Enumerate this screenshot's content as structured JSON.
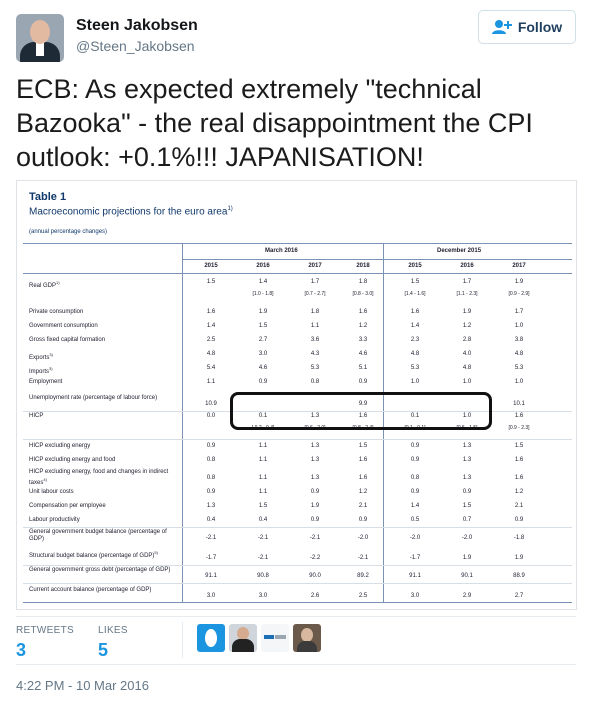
{
  "author": {
    "name": "Steen Jakobsen",
    "handle": "@Steen_Jakobsen"
  },
  "follow_label": "Follow",
  "tweet_text": "ECB: As expected extremely \"technical Bazooka\" - the real disappointment the CPI outlook: +0.1%!!! JAPANISATION!",
  "table": {
    "title": "Table 1",
    "subtitle": "Macroeconomic projections for the euro area",
    "subtitle_sup": "1)",
    "note": "(annual percentage changes)",
    "group_march": "March 2016",
    "group_december": "December 2015",
    "years": [
      "2015",
      "2016",
      "2017",
      "2018",
      "2015",
      "2016",
      "2017"
    ],
    "rows": [
      {
        "label": "Real GDP",
        "sup": "1)",
        "values": [
          "1.5",
          "1.4",
          "1.7",
          "1.8",
          "1.5",
          "1.7",
          "1.9"
        ],
        "ranges": [
          "",
          "[1.0 - 1.8]",
          "[0.7 - 2.7]",
          "[0.8 - 3.0]",
          "[1.4 - 1.6]",
          "[1.1 - 2.3]",
          "[0.9 - 2.9]"
        ]
      },
      {
        "label": "Private consumption",
        "values": [
          "1.6",
          "1.9",
          "1.8",
          "1.6",
          "1.6",
          "1.9",
          "1.7"
        ]
      },
      {
        "label": "Government consumption",
        "values": [
          "1.4",
          "1.5",
          "1.1",
          "1.2",
          "1.4",
          "1.2",
          "1.0"
        ]
      },
      {
        "label": "Gross fixed capital formation",
        "values": [
          "2.5",
          "2.7",
          "3.6",
          "3.3",
          "2.3",
          "2.8",
          "3.8"
        ]
      },
      {
        "label": "Exports",
        "sup": "3)",
        "values": [
          "4.8",
          "3.0",
          "4.3",
          "4.6",
          "4.8",
          "4.0",
          "4.8"
        ]
      },
      {
        "label": "Imports",
        "sup": "3)",
        "values": [
          "5.4",
          "4.6",
          "5.3",
          "5.1",
          "5.3",
          "4.8",
          "5.3"
        ]
      },
      {
        "label": "Employment",
        "values": [
          "1.1",
          "0.9",
          "0.8",
          "0.9",
          "1.0",
          "1.0",
          "1.0"
        ]
      },
      {
        "label": "Unemployment rate (percentage of labour force)",
        "values": [
          "10.9",
          "",
          "",
          "9.9",
          "",
          "",
          "10.1"
        ]
      },
      {
        "label": "HICP",
        "values": [
          "0.0",
          "0.1",
          "1.3",
          "1.6",
          "0.1",
          "1.0",
          "1.6"
        ],
        "ranges": [
          "",
          "[-0.2 - 0.4]",
          "[0.6 - 2.0]",
          "[0.8 - 2.4]",
          "[0.1 - 0.1]",
          "[0.5 - 1.5]",
          "[0.9 - 2.3]"
        ]
      },
      {
        "label": "HICP excluding energy",
        "values": [
          "0.9",
          "1.1",
          "1.3",
          "1.5",
          "0.9",
          "1.3",
          "1.5"
        ]
      },
      {
        "label": "HICP excluding energy and food",
        "values": [
          "0.8",
          "1.1",
          "1.3",
          "1.6",
          "0.9",
          "1.3",
          "1.6"
        ]
      },
      {
        "label": "HICP excluding energy, food and changes in indirect taxes",
        "sup": "4)",
        "values": [
          "0.8",
          "1.1",
          "1.3",
          "1.6",
          "0.8",
          "1.3",
          "1.6"
        ]
      },
      {
        "label": "Unit labour costs",
        "values": [
          "0.9",
          "1.1",
          "0.9",
          "1.2",
          "0.9",
          "0.9",
          "1.2"
        ]
      },
      {
        "label": "Compensation per employee",
        "values": [
          "1.3",
          "1.5",
          "1.9",
          "2.1",
          "1.4",
          "1.5",
          "2.1"
        ]
      },
      {
        "label": "Labour productivity",
        "values": [
          "0.4",
          "0.4",
          "0.9",
          "0.9",
          "0.5",
          "0.7",
          "0.9"
        ]
      },
      {
        "label": "General government budget balance (percentage of GDP)",
        "values": [
          "-2.1",
          "-2.1",
          "-2.1",
          "-2.0",
          "-2.0",
          "-2.0",
          "-1.8"
        ]
      },
      {
        "label": "Structural budget balance (percentage of GDP)",
        "sup": "5)",
        "values": [
          "-1.7",
          "-2.1",
          "-2.2",
          "-2.1",
          "-1.7",
          "1.9",
          "1.9"
        ]
      },
      {
        "label": "General government gross debt (percentage of GDP)",
        "values": [
          "91.1",
          "90.8",
          "90.0",
          "89.2",
          "91.1",
          "90.1",
          "88.9"
        ]
      },
      {
        "label": "Current account balance (percentage of GDP)",
        "values": [
          "3.0",
          "3.0",
          "2.6",
          "2.5",
          "3.0",
          "2.9",
          "2.7"
        ]
      }
    ]
  },
  "stats": {
    "retweets_label": "RETWEETS",
    "retweets": "3",
    "likes_label": "LIKES",
    "likes": "5"
  },
  "timestamp": "4:22 PM - 10 Mar 2016",
  "colors": {
    "link": "#1b95e0",
    "table_blue": "#10386b"
  }
}
